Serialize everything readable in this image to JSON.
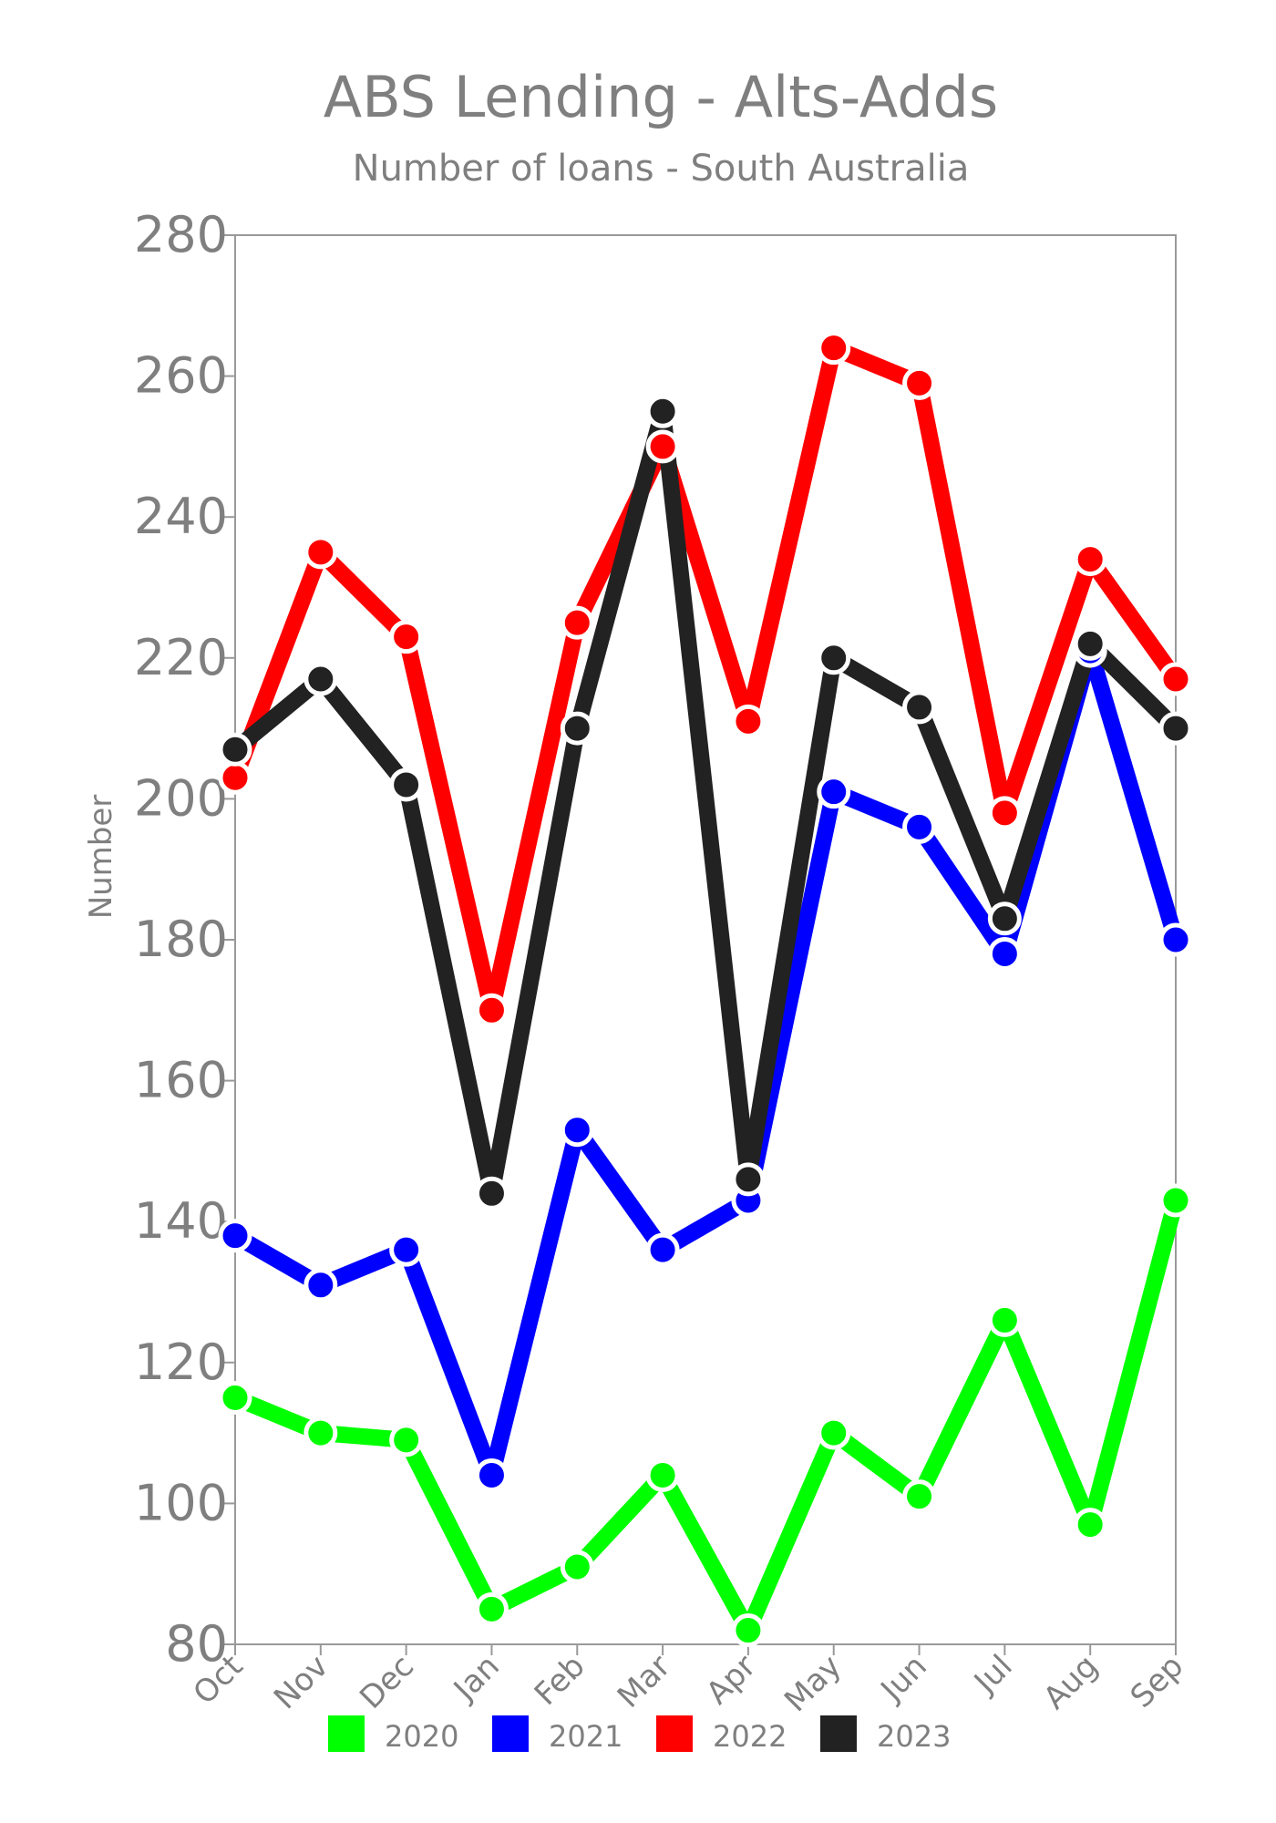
{
  "chart_data": {
    "type": "line",
    "title": "ABS Lending - Alts-Adds",
    "subtitle": "Number of loans - South Australia",
    "xlabel": "",
    "ylabel": "Number",
    "categories": [
      "Oct",
      "Nov",
      "Dec",
      "Jan",
      "Feb",
      "Mar",
      "Apr",
      "May",
      "Jun",
      "Jul",
      "Aug",
      "Sep"
    ],
    "ylim": [
      80,
      280
    ],
    "yticks": [
      80,
      100,
      120,
      140,
      160,
      180,
      200,
      220,
      240,
      260,
      280
    ],
    "grid": false,
    "legend_position": "bottom",
    "series": [
      {
        "name": "2020",
        "color": "#00ff00",
        "values": [
          115,
          110,
          109,
          85,
          91,
          104,
          82,
          110,
          101,
          126,
          97,
          143
        ]
      },
      {
        "name": "2021",
        "color": "#0000ff",
        "values": [
          138,
          131,
          136,
          104,
          153,
          136,
          143,
          201,
          196,
          178,
          221,
          180
        ]
      },
      {
        "name": "2022",
        "color": "#ff0000",
        "values": [
          203,
          235,
          223,
          170,
          225,
          250,
          211,
          264,
          259,
          198,
          234,
          217
        ]
      },
      {
        "name": "2023",
        "color": "#222222",
        "values": [
          207,
          217,
          202,
          144,
          210,
          255,
          146,
          220,
          213,
          183,
          222,
          210
        ]
      }
    ]
  }
}
